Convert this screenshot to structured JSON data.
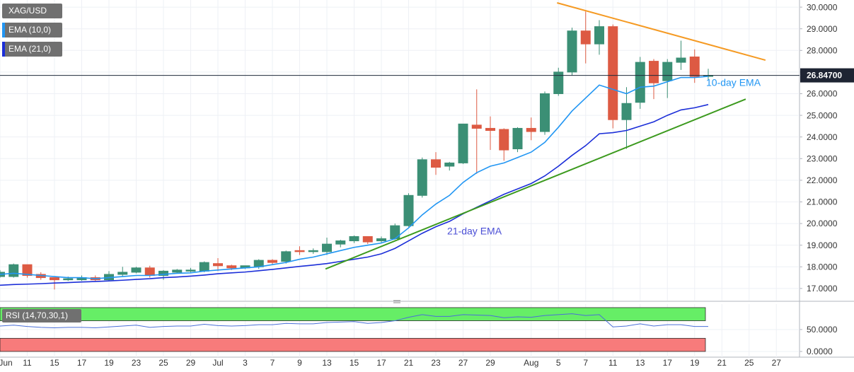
{
  "chart_data": [
    {
      "type": "candlestick",
      "title": "XAG/USD",
      "categories": [
        "Jun",
        null,
        "11",
        null,
        "15",
        null,
        "17",
        null,
        "19",
        null,
        "23",
        null,
        "25",
        null,
        "29",
        null,
        "Jul",
        null,
        "3",
        null,
        "7",
        null,
        "9",
        null,
        "13",
        null,
        "15",
        null,
        "17",
        null,
        "21",
        null,
        "23",
        null,
        "27",
        null,
        "29",
        null,
        null,
        "Aug",
        null,
        "5",
        null,
        "7",
        null,
        "11",
        null,
        "13",
        null,
        "17",
        null,
        "19",
        null,
        "21",
        null,
        "25",
        null,
        "27"
      ],
      "open": [
        17.55,
        17.55,
        18.1,
        17.65,
        17.5,
        17.4,
        17.4,
        17.5,
        17.4,
        17.65,
        17.75,
        17.95,
        17.6,
        17.75,
        17.8,
        17.8,
        18.15,
        18.05,
        17.95,
        18.0,
        18.3,
        18.25,
        18.75,
        18.7,
        18.7,
        19.05,
        19.2,
        19.4,
        19.2,
        19.3,
        19.9,
        21.3,
        22.95,
        22.65,
        22.8,
        24.55,
        24.4,
        24.35,
        23.45,
        24.4,
        24.25,
        26.0,
        27.0,
        28.9,
        28.3,
        29.1,
        24.8,
        25.6,
        27.5,
        26.6,
        27.45,
        27.7,
        26.8,
        null,
        null,
        null,
        null,
        null
      ],
      "high": [
        17.85,
        18.15,
        18.1,
        17.75,
        17.5,
        17.55,
        17.6,
        17.6,
        17.8,
        18.0,
        18.0,
        18.05,
        17.85,
        17.9,
        17.95,
        18.25,
        18.4,
        18.1,
        18.05,
        18.35,
        18.35,
        18.75,
        18.95,
        18.85,
        19.35,
        19.25,
        19.45,
        19.4,
        19.4,
        20.0,
        21.4,
        23.05,
        23.3,
        22.85,
        24.6,
        26.2,
        24.95,
        24.4,
        24.45,
        24.9,
        26.1,
        27.2,
        29.05,
        29.8,
        29.4,
        29.2,
        26.3,
        27.7,
        27.6,
        27.6,
        28.45,
        28.05,
        27.15,
        null,
        null,
        null,
        null,
        null
      ],
      "low": [
        17.5,
        17.5,
        17.5,
        17.4,
        16.95,
        17.35,
        17.35,
        17.35,
        17.35,
        17.55,
        17.7,
        17.5,
        17.4,
        17.7,
        17.75,
        17.75,
        17.8,
        17.85,
        17.9,
        17.9,
        18.1,
        18.15,
        18.55,
        18.6,
        18.55,
        18.9,
        19.1,
        19.05,
        19.1,
        19.25,
        19.85,
        21.2,
        22.25,
        22.45,
        22.75,
        22.3,
        23.4,
        22.9,
        23.3,
        23.85,
        24.1,
        25.9,
        26.85,
        27.4,
        27.8,
        24.4,
        23.45,
        25.3,
        25.75,
        25.8,
        27.1,
        26.5,
        26.65,
        null,
        null,
        null,
        null,
        null
      ],
      "close": [
        17.75,
        18.1,
        17.6,
        17.5,
        17.4,
        17.45,
        17.5,
        17.4,
        17.65,
        17.75,
        17.95,
        17.6,
        17.8,
        17.85,
        17.85,
        18.2,
        18.05,
        17.95,
        18.05,
        18.3,
        18.2,
        18.7,
        18.7,
        18.75,
        19.05,
        19.2,
        19.4,
        19.15,
        19.3,
        19.9,
        21.3,
        22.95,
        22.6,
        22.8,
        24.6,
        24.4,
        24.3,
        23.4,
        24.4,
        24.25,
        26.0,
        27.0,
        28.9,
        28.3,
        29.1,
        24.8,
        25.55,
        27.45,
        26.5,
        27.45,
        27.65,
        26.8,
        26.847,
        null,
        null,
        null,
        null,
        null
      ],
      "up_color": "#3b8f75",
      "down_color": "#dd5a43",
      "series": [
        {
          "name": "EMA (10,0)",
          "color": "#2196f3",
          "values": [
            17.65,
            17.7,
            17.65,
            17.6,
            17.55,
            17.5,
            17.5,
            17.45,
            17.5,
            17.55,
            17.6,
            17.6,
            17.65,
            17.7,
            17.72,
            17.8,
            17.85,
            17.9,
            17.95,
            18.0,
            18.1,
            18.2,
            18.35,
            18.45,
            18.6,
            18.75,
            18.9,
            19.0,
            19.1,
            19.3,
            19.8,
            20.4,
            20.9,
            21.3,
            21.9,
            22.35,
            22.65,
            22.8,
            23.05,
            23.3,
            23.75,
            24.45,
            25.2,
            25.8,
            26.4,
            26.2,
            26.0,
            26.3,
            26.35,
            26.55,
            26.75,
            26.75,
            26.8,
            null,
            null,
            null,
            null,
            null
          ]
        },
        {
          "name": "EMA (21,0)",
          "color": "#1b2ed8",
          "values": [
            17.15,
            17.18,
            17.2,
            17.22,
            17.25,
            17.27,
            17.3,
            17.32,
            17.35,
            17.38,
            17.42,
            17.45,
            17.5,
            17.53,
            17.57,
            17.62,
            17.68,
            17.72,
            17.76,
            17.82,
            17.88,
            17.95,
            18.02,
            18.08,
            18.15,
            18.25,
            18.35,
            18.45,
            18.6,
            18.85,
            19.2,
            19.55,
            19.85,
            20.1,
            20.45,
            20.75,
            21.05,
            21.35,
            21.6,
            21.85,
            22.2,
            22.65,
            23.15,
            23.6,
            24.15,
            24.2,
            24.3,
            24.5,
            24.7,
            25.0,
            25.25,
            25.35,
            25.5,
            null,
            null,
            null,
            null,
            null
          ]
        }
      ],
      "trendlines": [
        {
          "color": "#f59a23",
          "x": [
            40.9,
            56.2
          ],
          "y": [
            30.2,
            27.55
          ]
        },
        {
          "color": "#3c9a1e",
          "x": [
            23.9,
            54.75
          ],
          "y": [
            17.9,
            25.75
          ]
        }
      ],
      "annotations": [
        {
          "text": "10-day EMA",
          "color": "#2196f3"
        },
        {
          "text": "21-day EMA",
          "color": "#4b4fd6"
        }
      ],
      "price_line": {
        "value": 26.847,
        "label": "26.84700"
      },
      "ylim": [
        16.44,
        30.33
      ],
      "yticks": [
        {
          "value": 17,
          "label": "17.0000"
        },
        {
          "value": 18,
          "label": "18.0000"
        },
        {
          "value": 19,
          "label": "19.0000"
        },
        {
          "value": 20,
          "label": "20.0000"
        },
        {
          "value": 21,
          "label": "21.0000"
        },
        {
          "value": 22,
          "label": "22.0000"
        },
        {
          "value": 23,
          "label": "23.0000"
        },
        {
          "value": 24,
          "label": "24.0000"
        },
        {
          "value": 25,
          "label": "25.0000"
        },
        {
          "value": 26,
          "label": "26.0000"
        },
        {
          "value": 27,
          "label": "27.0000"
        },
        {
          "value": 28,
          "label": "28.0000"
        },
        {
          "value": 29,
          "label": "29.0000"
        },
        {
          "value": 30,
          "label": "30.0000"
        }
      ],
      "grid": true
    },
    {
      "type": "line",
      "title": "RSI (14,70,30,1)",
      "color": "#4a6fd8",
      "values": [
        58,
        60,
        57,
        55,
        54,
        55,
        55,
        54,
        56,
        58,
        60,
        55,
        57,
        58,
        58,
        62,
        59,
        58,
        59,
        61,
        61,
        64,
        63,
        63,
        66,
        67,
        68,
        64,
        66,
        70,
        78,
        84,
        80,
        80,
        84,
        83,
        82,
        77,
        79,
        78,
        82,
        84,
        86,
        82,
        84,
        56,
        58,
        63,
        58,
        61,
        61,
        57,
        57,
        null,
        null,
        null,
        null,
        null
      ],
      "bands": [
        {
          "from": 70,
          "to": 100,
          "color": "#66ee66"
        },
        {
          "from": 0,
          "to": 30,
          "color": "#f77b7b"
        }
      ],
      "ylim": [
        -13,
        108
      ],
      "yticks": [
        {
          "value": 0,
          "label": "0.0000"
        },
        {
          "value": 50,
          "label": "50.0000"
        }
      ],
      "grid": true
    }
  ]
}
